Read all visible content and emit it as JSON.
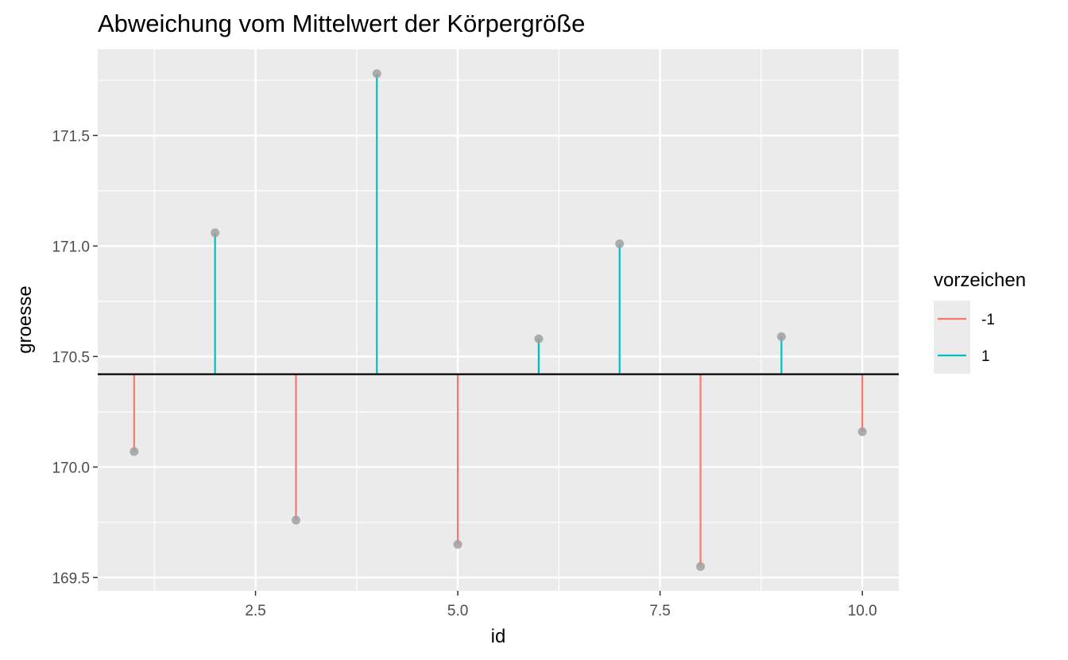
{
  "chart_data": {
    "type": "lollipop",
    "title": "Abweichung vom Mittelwert der Körpergröße",
    "xlabel": "id",
    "ylabel": "groesse",
    "baseline": 170.42,
    "xlim": [
      0.55,
      10.45
    ],
    "ylim": [
      169.44,
      171.89
    ],
    "x_ticks": [
      2.5,
      5.0,
      7.5,
      10.0
    ],
    "x_tick_labels": [
      "2.5",
      "5.0",
      "7.5",
      "10.0"
    ],
    "y_ticks": [
      169.5,
      170.0,
      170.5,
      171.0,
      171.5
    ],
    "y_tick_labels": [
      "169.5",
      "170.0",
      "170.5",
      "171.0",
      "171.5"
    ],
    "grid": true,
    "points": [
      {
        "id": 1,
        "groesse": 170.07,
        "vorzeichen": "-1"
      },
      {
        "id": 2,
        "groesse": 171.06,
        "vorzeichen": "1"
      },
      {
        "id": 3,
        "groesse": 169.76,
        "vorzeichen": "-1"
      },
      {
        "id": 4,
        "groesse": 171.78,
        "vorzeichen": "1"
      },
      {
        "id": 5,
        "groesse": 169.65,
        "vorzeichen": "-1"
      },
      {
        "id": 6,
        "groesse": 170.58,
        "vorzeichen": "1"
      },
      {
        "id": 7,
        "groesse": 171.01,
        "vorzeichen": "1"
      },
      {
        "id": 8,
        "groesse": 169.55,
        "vorzeichen": "-1"
      },
      {
        "id": 9,
        "groesse": 170.59,
        "vorzeichen": "1"
      },
      {
        "id": 10,
        "groesse": 170.16,
        "vorzeichen": "-1"
      }
    ],
    "legend": {
      "title": "vorzeichen",
      "position": "right",
      "entries": [
        {
          "label": "-1",
          "color": "#f8766d"
        },
        {
          "label": "1",
          "color": "#00bfc4"
        }
      ]
    },
    "colors": {
      "panel": "#ebebeb",
      "grid": "#ffffff",
      "baseline": "#000000",
      "point": "#a0a0a0"
    }
  }
}
